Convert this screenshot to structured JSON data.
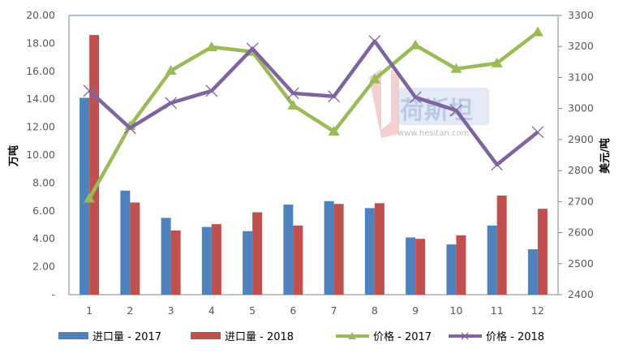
{
  "chart_data": {
    "type": "bar+line",
    "categories": [
      "1",
      "2",
      "3",
      "4",
      "5",
      "6",
      "7",
      "8",
      "9",
      "10",
      "11",
      "12"
    ],
    "left_axis": {
      "label": "万吨",
      "ylim": [
        0,
        20
      ],
      "ticks": [
        "-",
        "2.00",
        "4.00",
        "6.00",
        "8.00",
        "10.00",
        "12.00",
        "14.00",
        "16.00",
        "18.00",
        "20.00"
      ]
    },
    "right_axis": {
      "label": "美元/吨",
      "ylim": [
        2400,
        3300
      ],
      "ticks": [
        "2400",
        "2500",
        "2600",
        "2700",
        "2800",
        "2900",
        "3000",
        "3100",
        "3200",
        "3300"
      ]
    },
    "series": [
      {
        "name": "进口量  - 2017",
        "type": "bar",
        "axis": "left",
        "color": "#4f81bd",
        "values": [
          14.1,
          7.45,
          5.5,
          4.85,
          4.55,
          6.45,
          6.7,
          6.2,
          4.1,
          3.6,
          4.95,
          3.25
        ]
      },
      {
        "name": "进口量  - 2018",
        "type": "bar",
        "axis": "left",
        "color": "#c0504d",
        "values": [
          18.6,
          6.6,
          4.6,
          5.05,
          5.9,
          4.95,
          6.5,
          6.55,
          4.0,
          4.25,
          7.1,
          6.15
        ]
      },
      {
        "name": "价格 - 2017",
        "type": "line",
        "axis": "right",
        "color": "#9bbb59",
        "marker": "triangle",
        "values": [
          2710,
          2944,
          3122,
          3198,
          3183,
          3010,
          2926,
          3094,
          3204,
          3128,
          3146,
          3246
        ]
      },
      {
        "name": "价格 - 2018",
        "type": "line",
        "axis": "right",
        "color": "#8064a2",
        "marker": "x",
        "values": [
          3057,
          2937,
          3018,
          3057,
          3193,
          3049,
          3039,
          3217,
          3036,
          2994,
          2819,
          2924
        ]
      }
    ],
    "legend": "bottom",
    "grid": false
  },
  "watermark": {
    "brand": "荷斯坦",
    "url": "www.hesitan.com"
  }
}
